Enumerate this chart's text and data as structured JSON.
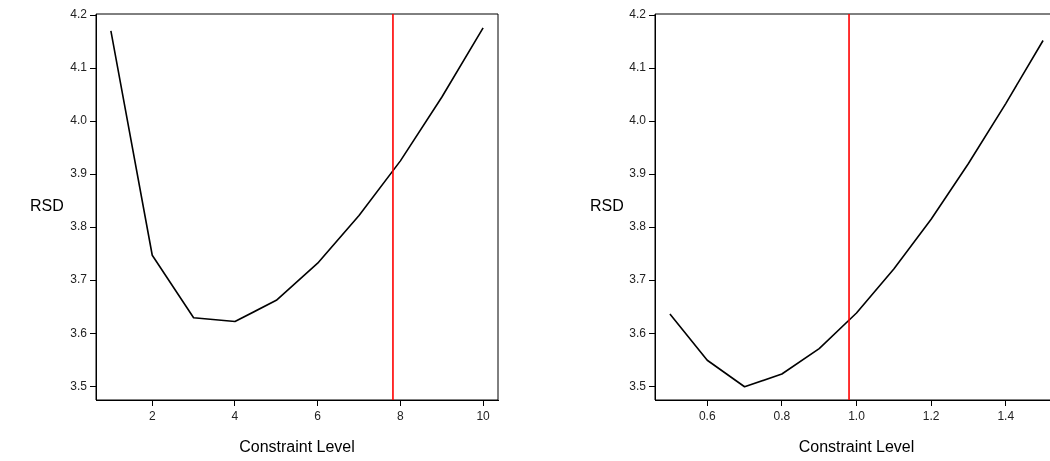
{
  "chart_data": [
    {
      "type": "line",
      "xlabel": "Constraint Level",
      "ylabel": "RSD",
      "x": [
        1,
        2,
        3,
        4,
        5,
        6,
        7,
        8,
        9,
        10
      ],
      "series": [
        {
          "color": "#000000",
          "values": [
            4.17,
            3.747,
            3.629,
            3.622,
            3.662,
            3.732,
            3.822,
            3.925,
            4.045,
            4.176
          ]
        }
      ],
      "xlim": [
        0.64,
        10.36
      ],
      "ylim": [
        3.474,
        4.202
      ],
      "xticks": [
        2,
        4,
        6,
        8,
        10
      ],
      "yticks": [
        3.5,
        3.6,
        3.7,
        3.8,
        3.9,
        {
          "value": 4,
          "label": "4.0"
        },
        4.1,
        4.2
      ],
      "ref_lines": [
        {
          "axis": "x",
          "value": 7.82,
          "color": "#ff0000"
        }
      ],
      "grid": false,
      "legend": false,
      "marker": "none",
      "line_style": "solid"
    },
    {
      "type": "line",
      "xlabel": "Constraint Level",
      "ylabel": "RSD",
      "x": [
        0.5,
        0.6,
        0.7,
        0.8,
        0.9,
        1.0,
        1.1,
        1.2,
        1.3,
        1.4,
        1.5
      ],
      "series": [
        {
          "color": "#000000",
          "values": [
            3.636,
            3.549,
            3.499,
            3.523,
            3.571,
            3.638,
            3.721,
            3.815,
            3.92,
            4.033,
            4.152
          ]
        }
      ],
      "xlim": [
        0.46,
        1.54
      ],
      "ylim": [
        3.474,
        4.202
      ],
      "xticks": [
        0.6,
        0.8,
        {
          "value": 1,
          "label": "1.0"
        },
        1.2,
        1.4
      ],
      "yticks": [
        3.5,
        3.6,
        3.7,
        3.8,
        3.9,
        {
          "value": 4,
          "label": "4.0"
        },
        4.1,
        4.2
      ],
      "ref_lines": [
        {
          "axis": "x",
          "value": 0.98,
          "color": "#ff0000"
        }
      ],
      "grid": false,
      "legend": false,
      "marker": "none",
      "line_style": "solid"
    }
  ]
}
